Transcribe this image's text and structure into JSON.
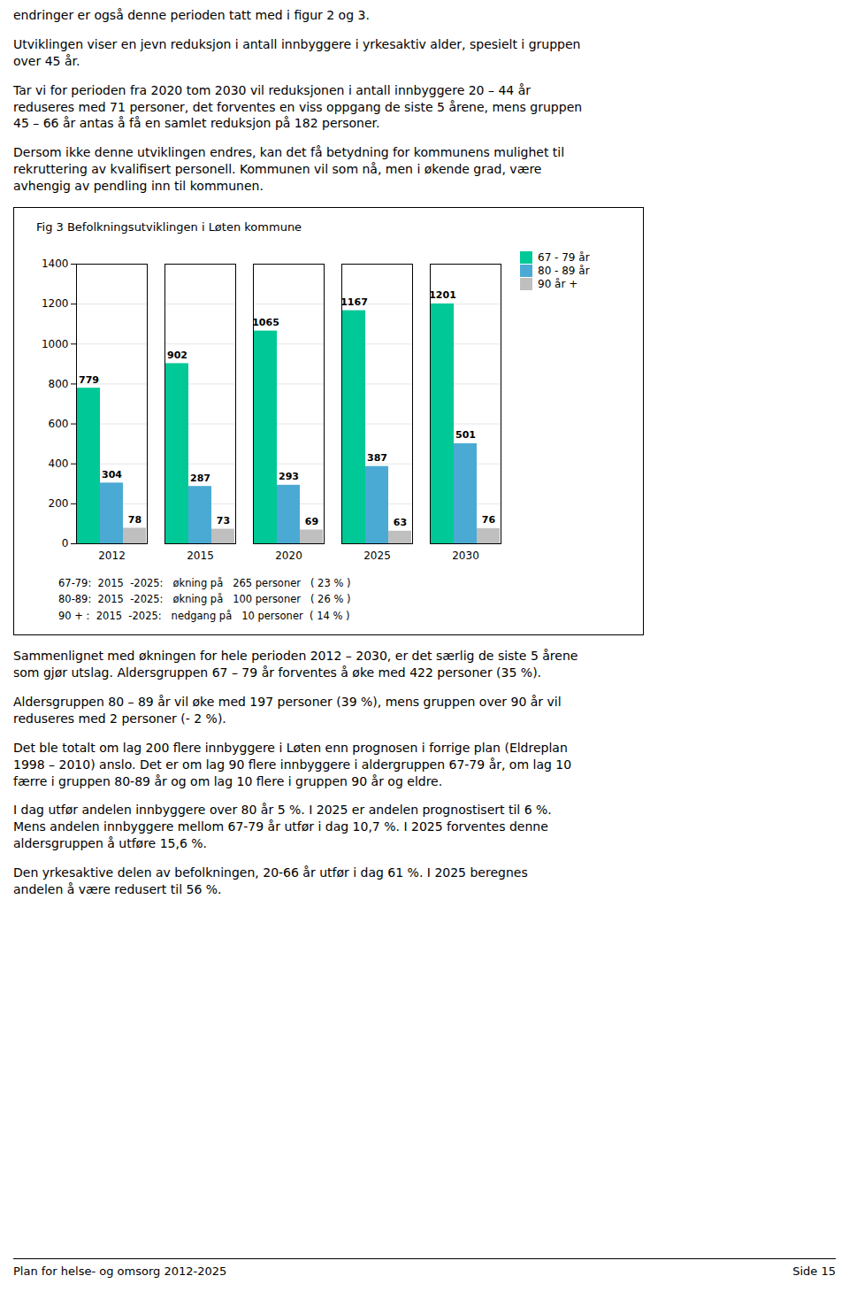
{
  "text_before": [
    "endringer er også denne perioden tatt med i figur 2 og 3.",
    "Utviklingen viser en jevn reduksjon i antall innbyggere i yrkesaktiv alder, spesielt i gruppen\nover 45 år.",
    "Tar vi for perioden fra 2020 tom 2030 vil reduksjonen i antall innbyggere 20 – 44 år\nreduseres med 71 personer, det forventes en viss oppgang de siste 5 årene, mens gruppen\n45 – 66 år antas å få en samlet reduksjon på 182 personer.",
    "Dersom ikke denne utviklingen endres, kan det få betydning for kommunens mulighet til\nrekruttering av kvalifisert personell. Kommunen vil som nå, men i økende grad, være\navhengig av pendling inn til kommunen."
  ],
  "chart_data": {
    "type": "bar",
    "title": "Fig  3 Befolkningsutviklingen  i Løten  kommune",
    "categories": [
      "2012",
      "2015",
      "2020",
      "2025",
      "2030"
    ],
    "series": [
      {
        "name": "67 - 79 år",
        "color": "#00C896",
        "values": [
          779,
          902,
          1065,
          1167,
          1201
        ]
      },
      {
        "name": "80 - 89 år",
        "color": "#4BAAD4",
        "values": [
          304,
          287,
          293,
          387,
          501
        ]
      },
      {
        "name": "90 år +",
        "color": "#BFBFBF",
        "values": [
          78,
          73,
          69,
          63,
          76
        ]
      }
    ],
    "ylim": [
      0,
      1400
    ],
    "yticks": [
      0,
      200,
      400,
      600,
      800,
      1000,
      1200,
      1400
    ],
    "grid": true,
    "legend": "right",
    "data_labels": true,
    "annotations": [
      "67-79:  2015  -2025:   økning på   265 personer   ( 23 % )",
      "80-89:  2015  -2025:   økning på   100 personer   ( 26 % )",
      "90 + :  2015  -2025:   nedgang på   10 personer  ( 14 % )"
    ]
  },
  "text_after": [
    "Sammenlignet med økningen for hele perioden 2012 – 2030, er det særlig de siste 5 årene\nsom gjør utslag. Aldersgruppen 67 – 79 år forventes å øke med 422 personer (35 %).",
    "Aldersgruppen 80 – 89 år vil øke med 197 personer (39 %), mens gruppen over 90 år vil\nreduseres med 2 personer (- 2 %).",
    "Det ble totalt om lag 200 flere innbyggere i Løten enn prognosen i forrige plan (Eldreplan\n1998 – 2010) anslo. Det er om lag 90 flere innbyggere i aldergruppen 67-79 år, om lag 10\nfærre i gruppen 80-89 år og om lag 10 flere i gruppen 90 år og eldre.",
    "I dag utfør andelen innbyggere over 80 år 5 %. I 2025 er andelen prognostisert til 6 %.\nMens andelen innbyggere mellom 67-79 år utfør i dag 10,7 %. I 2025 forventes denne\naldersgruppen å utføre 15,6 %.",
    "Den yrkesaktive delen av befolkningen, 20-66 år utfør i dag 61 %. I 2025 beregnes\nandelen å være redusert til 56 %."
  ],
  "page_footer": [
    "Plan for helse- og omsorg 2012-2025",
    "Side 15"
  ]
}
